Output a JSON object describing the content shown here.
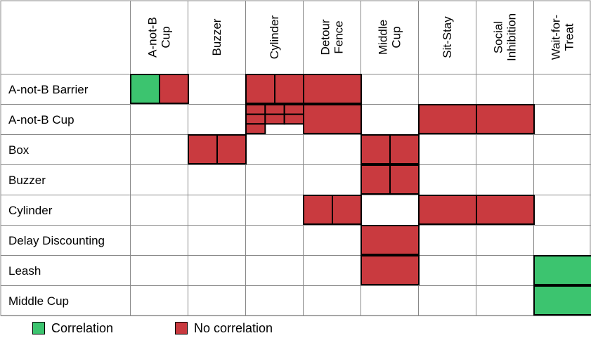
{
  "colors": {
    "correlation": "#3cc46f",
    "no_correlation": "#c93a3f",
    "grid_line": "#888888",
    "border": "#000000"
  },
  "columns": [
    [
      "A-not-B",
      "Cup"
    ],
    [
      "Buzzer"
    ],
    [
      "Cylinder"
    ],
    [
      "Detour",
      "Fence"
    ],
    [
      "Middle",
      "Cup"
    ],
    [
      "Sit-Stay"
    ],
    [
      "Social",
      "Inhibition"
    ],
    [
      "Wait-for-",
      "Treat"
    ]
  ],
  "rows": [
    "A-not-B Barrier",
    "A-not-B Cup",
    "Box",
    "Buzzer",
    "Cylinder",
    "Delay Discounting",
    "Leash",
    "Middle Cup"
  ],
  "cells": [
    {
      "row": 0,
      "col": 0,
      "parts": [
        [
          "correlation",
          "no_correlation"
        ]
      ]
    },
    {
      "row": 0,
      "col": 2,
      "parts": [
        [
          "no_correlation",
          "no_correlation"
        ]
      ]
    },
    {
      "row": 0,
      "col": 3,
      "parts": [
        [
          "no_correlation"
        ]
      ]
    },
    {
      "row": 1,
      "col": 2,
      "parts": [
        [
          "no_correlation",
          "no_correlation",
          "no_correlation"
        ],
        [
          "no_correlation",
          "no_correlation",
          "no_correlation"
        ],
        [
          "no_correlation",
          null,
          null
        ]
      ]
    },
    {
      "row": 1,
      "col": 3,
      "parts": [
        [
          "no_correlation"
        ]
      ]
    },
    {
      "row": 1,
      "col": 5,
      "parts": [
        [
          "no_correlation"
        ]
      ]
    },
    {
      "row": 1,
      "col": 6,
      "parts": [
        [
          "no_correlation"
        ]
      ]
    },
    {
      "row": 2,
      "col": 1,
      "parts": [
        [
          "no_correlation",
          "no_correlation"
        ]
      ]
    },
    {
      "row": 2,
      "col": 4,
      "parts": [
        [
          "no_correlation",
          "no_correlation"
        ]
      ]
    },
    {
      "row": 3,
      "col": 4,
      "parts": [
        [
          "no_correlation",
          "no_correlation"
        ]
      ]
    },
    {
      "row": 4,
      "col": 3,
      "parts": [
        [
          "no_correlation",
          "no_correlation"
        ]
      ]
    },
    {
      "row": 4,
      "col": 5,
      "parts": [
        [
          "no_correlation"
        ]
      ]
    },
    {
      "row": 4,
      "col": 6,
      "parts": [
        [
          "no_correlation"
        ]
      ]
    },
    {
      "row": 5,
      "col": 4,
      "parts": [
        [
          "no_correlation"
        ]
      ]
    },
    {
      "row": 6,
      "col": 4,
      "parts": [
        [
          "no_correlation"
        ]
      ]
    },
    {
      "row": 6,
      "col": 7,
      "parts": [
        [
          "correlation"
        ]
      ]
    },
    {
      "row": 7,
      "col": 7,
      "parts": [
        [
          "correlation"
        ]
      ]
    }
  ],
  "legend": {
    "correlation_label": "Correlation",
    "no_correlation_label": "No correlation"
  }
}
